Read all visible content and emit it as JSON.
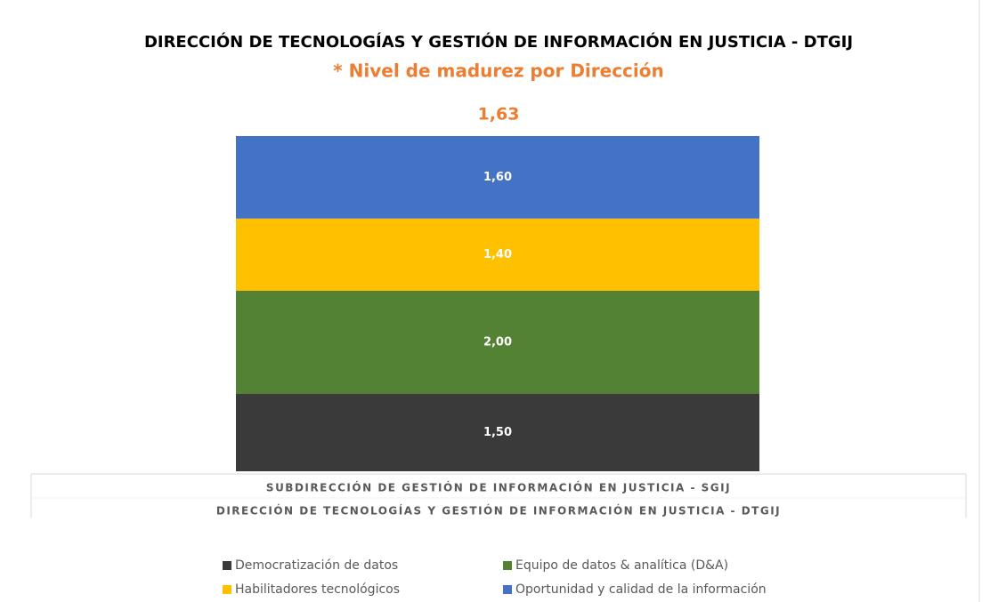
{
  "chart_data": {
    "type": "stacked_bar",
    "title": "DIRECCIÓN DE TECNOLOGÍAS Y GESTIÓN DE INFORMACIÓN EN JUSTICIA - DTGIJ",
    "subtitle": "* Nivel de madurez por Dirección",
    "annotation": {
      "value": 1.63,
      "label": "1,63"
    },
    "categories": [
      "SUBDIRECCIÓN DE GESTIÓN DE INFORMACIÓN EN JUSTICIA - SGIJ"
    ],
    "category_group": "DIRECCIÓN DE TECNOLOGÍAS Y GESTIÓN DE INFORMACIÓN EN JUSTICIA - DTGIJ",
    "ylim": [
      0,
      6.5
    ],
    "series": [
      {
        "name": "Democratización de datos",
        "color": "#3a3a3a",
        "values": [
          1.5
        ],
        "value_labels": [
          "1,50"
        ]
      },
      {
        "name": "Equipo de datos & analítica (D&A)",
        "color": "#548235",
        "values": [
          2.0
        ],
        "value_labels": [
          "2,00"
        ]
      },
      {
        "name": "Habilitadores tecnológicos",
        "color": "#ffc000",
        "values": [
          1.4
        ],
        "value_labels": [
          "1,40"
        ]
      },
      {
        "name": "Oportunidad y calidad de la información",
        "color": "#4472c4",
        "values": [
          1.6
        ],
        "value_labels": [
          "1,60"
        ]
      }
    ]
  }
}
